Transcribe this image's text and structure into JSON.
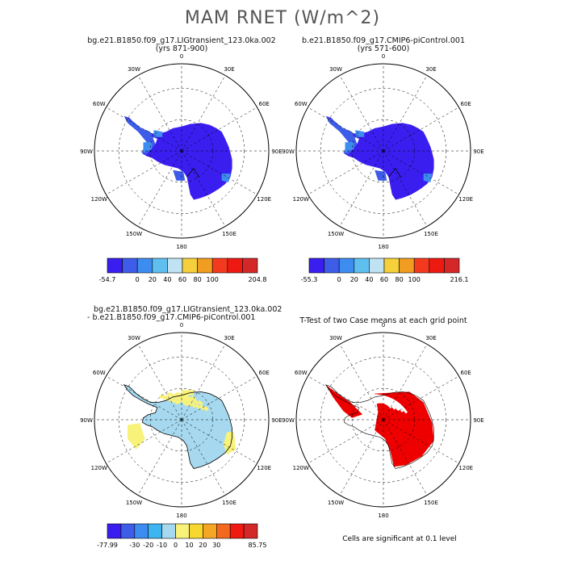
{
  "main_title": "MAM RNET (W/m^2)",
  "panels": [
    {
      "id": "lig",
      "title": "bg.e21.B1850.f09_g17.LIGtransient_123.0ka.002",
      "subtitle": "(yrs 871-900)"
    },
    {
      "id": "pic",
      "title": "b.e21.B1850.f09_g17.CMIP6-piControl.001",
      "subtitle": "(yrs 571-600)"
    },
    {
      "id": "diff",
      "title": "bg.e21.B1850.f09_g17.LIGtransient_123.0ka.002",
      "subtitle": "- b.e21.B1850.f09_g17.CMIP6-piControl.001"
    },
    {
      "id": "ttest",
      "title": "T-Test of two Case means at each grid point",
      "subtitle": ""
    }
  ],
  "lon_labels": [
    "0",
    "30E",
    "60E",
    "90E",
    "120E",
    "150E",
    "180",
    "150W",
    "120W",
    "90W",
    "60W",
    "30W"
  ],
  "colorbars": [
    {
      "id": "lig",
      "colors": [
        "#3a1ef0",
        "#3d5ce8",
        "#3d8df0",
        "#5fc0f0",
        "#bfe3f2",
        "#f5d03a",
        "#f09d22",
        "#f43a1e",
        "#ee1a12",
        "#d42828"
      ],
      "labels": [
        "-54.7",
        "0",
        "20",
        "40",
        "60",
        "80",
        "100",
        "204.8"
      ],
      "label_slots": [
        0,
        2,
        3,
        4,
        5,
        6,
        7,
        10
      ]
    },
    {
      "id": "pic",
      "colors": [
        "#3a1ef0",
        "#3d5ce8",
        "#3d8df0",
        "#5fc0f0",
        "#bfe3f2",
        "#f5d03a",
        "#f09d22",
        "#f43a1e",
        "#ee1a12",
        "#d42828"
      ],
      "labels": [
        "-55.3",
        "0",
        "20",
        "40",
        "60",
        "80",
        "100",
        "216.1"
      ],
      "label_slots": [
        0,
        2,
        3,
        4,
        5,
        6,
        7,
        10
      ]
    },
    {
      "id": "diff",
      "colors": [
        "#3a1ef0",
        "#3d5ce8",
        "#3d8df0",
        "#3db5f0",
        "#a6d9ef",
        "#f8f27a",
        "#f8d72e",
        "#f5a623",
        "#f36a1e",
        "#f01a12",
        "#d42828"
      ],
      "labels": [
        "-77.99",
        "-30",
        "-20",
        "-10",
        "0",
        "10",
        "20",
        "30",
        "85.75"
      ],
      "label_slots": [
        0,
        2,
        3,
        4,
        5,
        6,
        7,
        8,
        11
      ]
    }
  ],
  "footnote": "Cells are significant at 0.1 level",
  "map_colors": {
    "ice_sheet": "#3a1ef0",
    "coastal_medium_blue": "#3d5ce8",
    "coastal_light_blue": "#3d8df0",
    "diff_light_blue": "#a6d9ef",
    "diff_yellow": "#f8f27a",
    "significant_red": "#ee0000"
  }
}
